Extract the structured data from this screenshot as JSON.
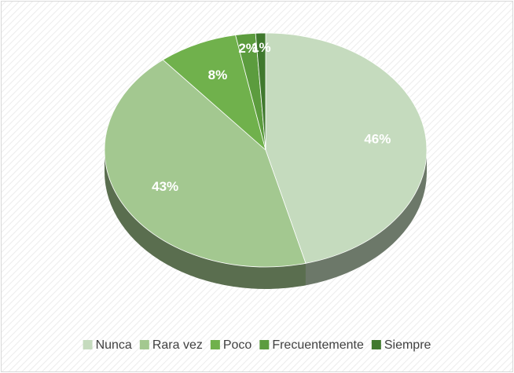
{
  "chart_data": {
    "type": "pie",
    "categories": [
      "Nunca",
      "Rara vez",
      "Poco",
      "Frecuentemente",
      "Siempre"
    ],
    "values": [
      46,
      43,
      8,
      2,
      1
    ],
    "value_labels": [
      "46%",
      "43%",
      "8%",
      "2%",
      "1%"
    ],
    "colors": [
      "#c5dbbe",
      "#a3c890",
      "#70b14c",
      "#5c9c3e",
      "#40792e"
    ],
    "legend": "bottom"
  }
}
